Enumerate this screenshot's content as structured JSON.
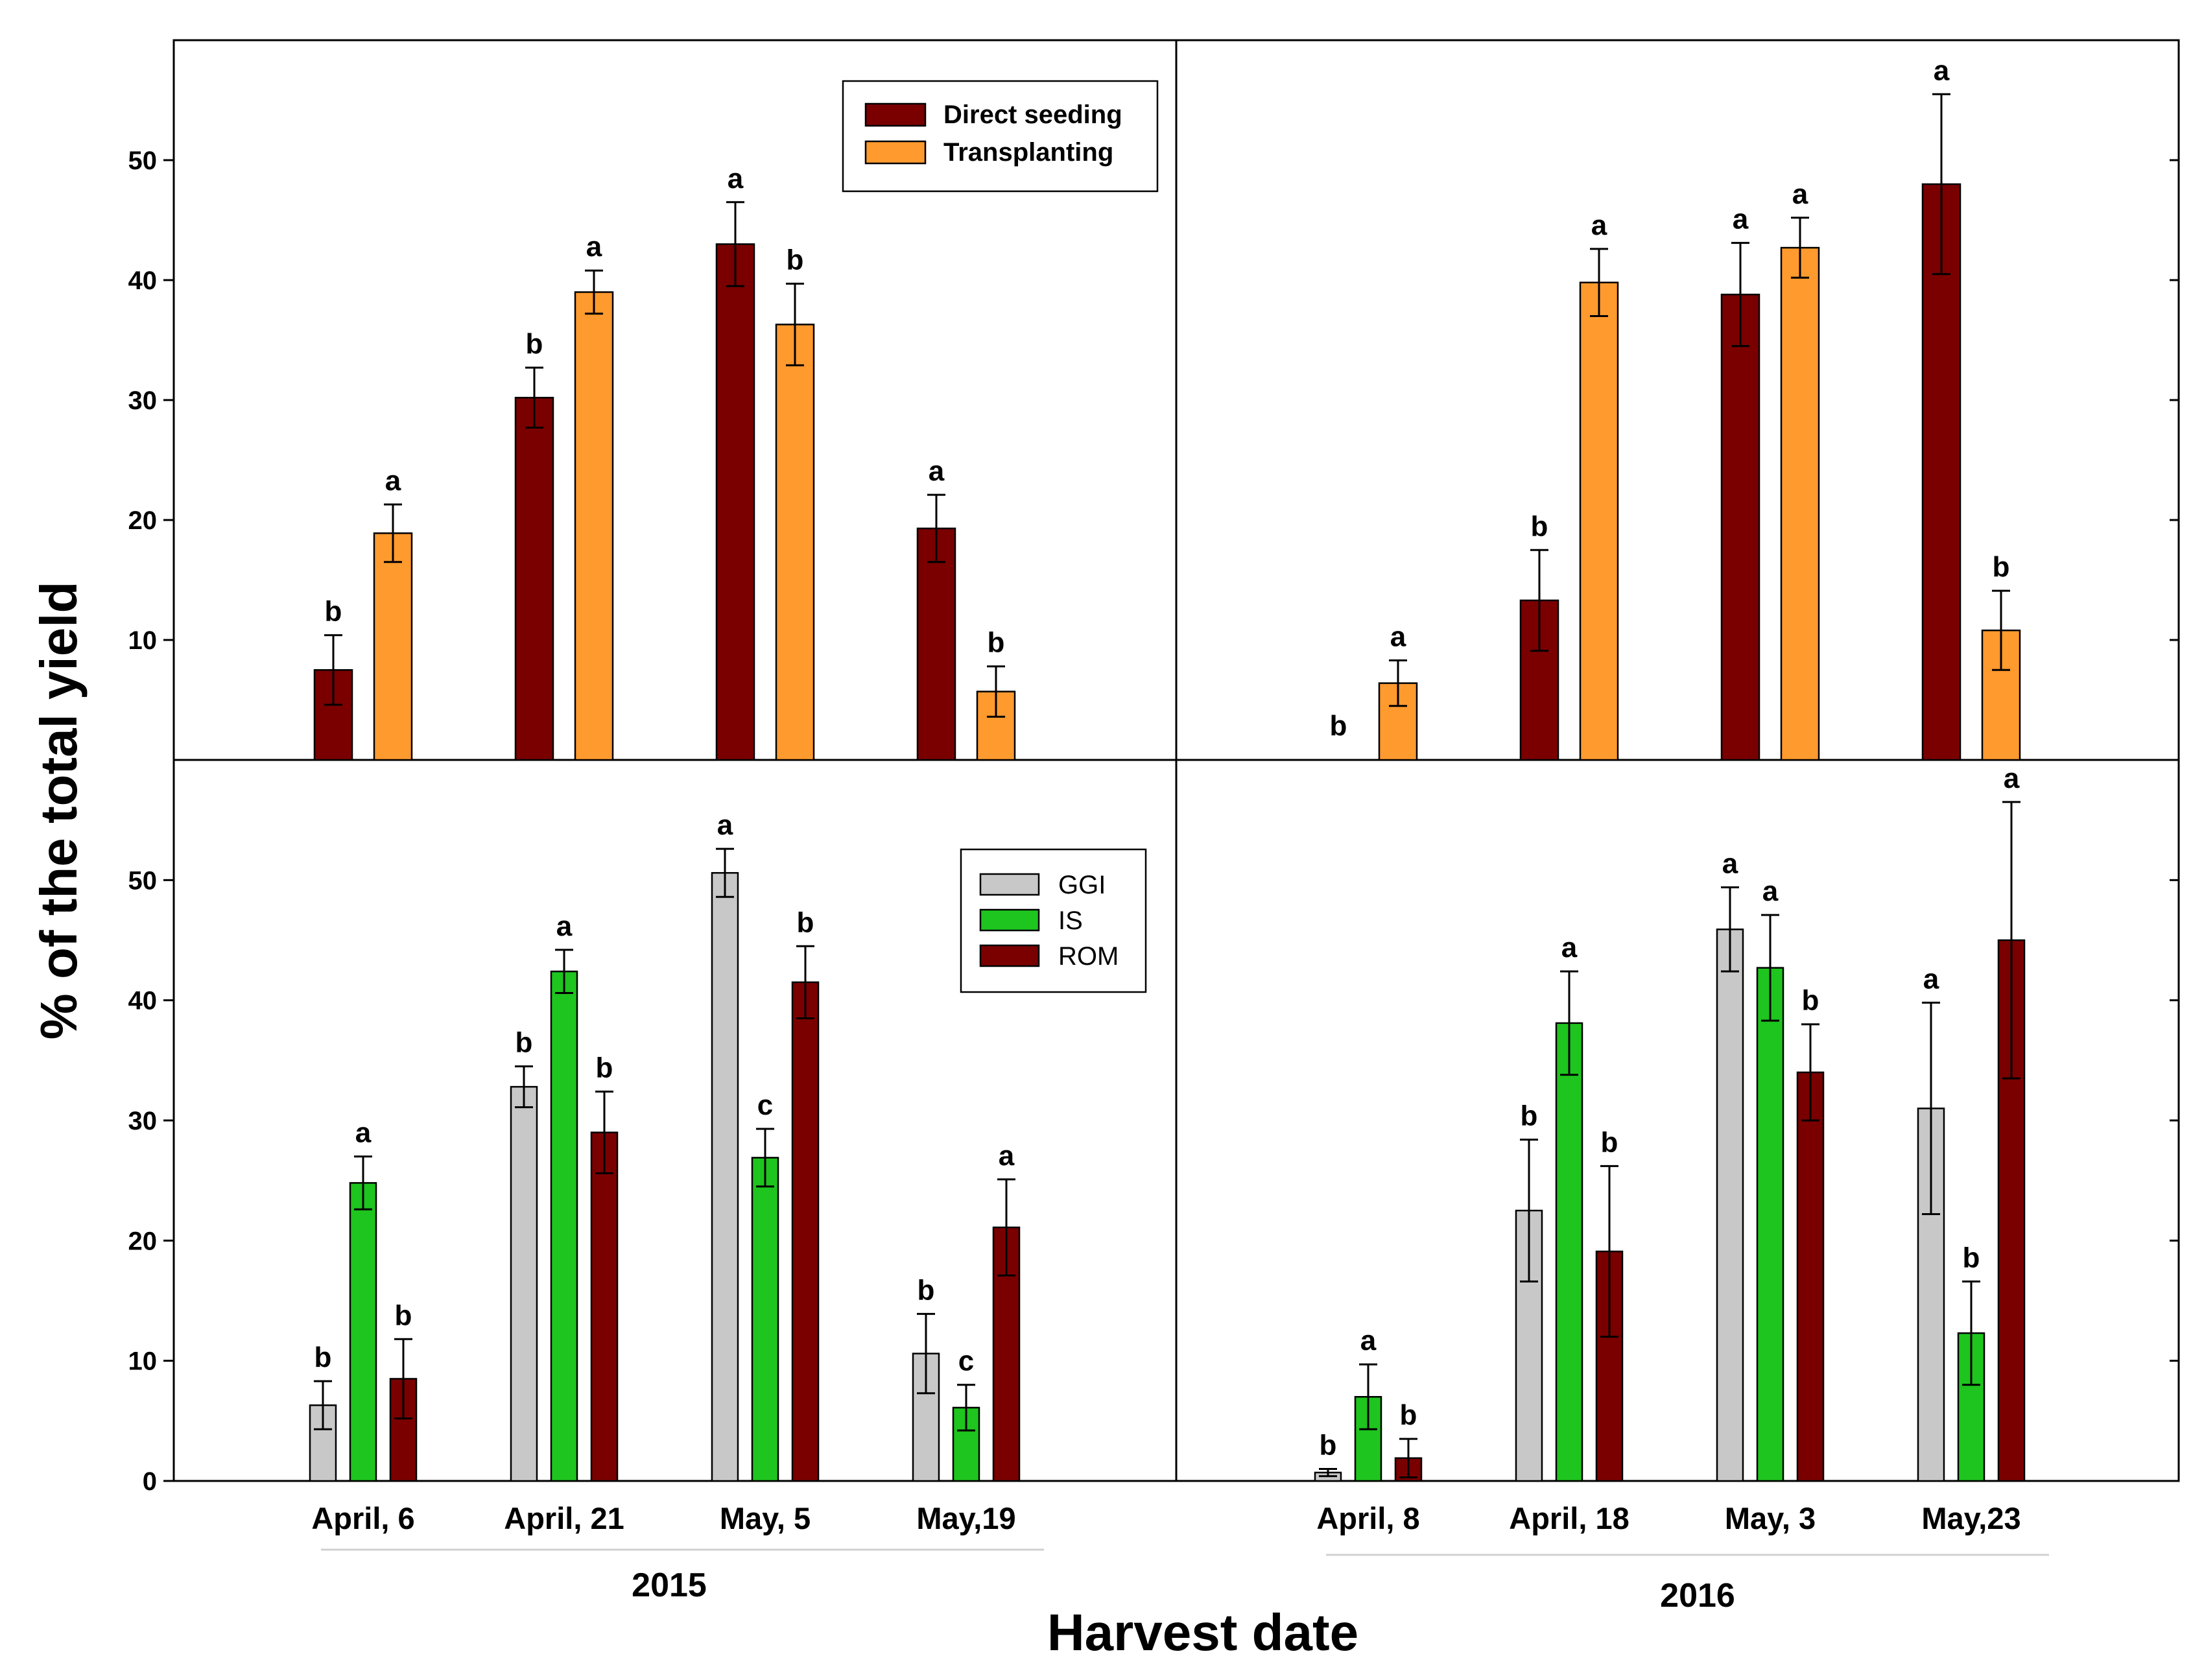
{
  "chart_data": {
    "type": "bar",
    "ylabel": "% of the total yield",
    "xlabel": "Harvest date",
    "ylim": [
      0,
      60
    ],
    "yticks": [
      10,
      20,
      30,
      40,
      50
    ],
    "bottom_yticks": [
      0,
      10,
      20,
      30,
      40,
      50
    ],
    "colors": {
      "direct_seeding": "#7a0000",
      "transplanting": "#ff9a2e",
      "ggi": "#c8c8c8",
      "is": "#1ec51e",
      "rom": "#7a0000"
    },
    "years": [
      "2015",
      "2016"
    ],
    "panels": [
      {
        "id": "top-2015",
        "categories": [
          "April, 6",
          "April, 21",
          "May, 5",
          "May,19"
        ],
        "legend": [
          "Direct seeding",
          "Transplanting"
        ],
        "series": [
          {
            "name": "Direct seeding",
            "values": [
              7.5,
              30.2,
              43.0,
              19.3
            ],
            "errors": [
              2.9,
              2.5,
              3.5,
              2.8
            ],
            "sig": [
              "b",
              "b",
              "a",
              "a"
            ]
          },
          {
            "name": "Transplanting",
            "values": [
              18.9,
              39.0,
              36.3,
              5.7
            ],
            "errors": [
              2.4,
              1.8,
              3.4,
              2.1
            ],
            "sig": [
              "a",
              "a",
              "b",
              "b"
            ]
          }
        ]
      },
      {
        "id": "top-2016",
        "categories": [
          "April, 8",
          "April, 18",
          "May, 3",
          "May,23"
        ],
        "series": [
          {
            "name": "Direct seeding",
            "values": [
              0,
              13.3,
              38.8,
              48.0
            ],
            "errors": [
              0,
              4.2,
              4.3,
              7.5
            ],
            "sig": [
              "b",
              "b",
              "a",
              "a"
            ]
          },
          {
            "name": "Transplanting",
            "values": [
              6.4,
              39.8,
              42.7,
              10.8
            ],
            "errors": [
              1.9,
              2.8,
              2.5,
              3.3
            ],
            "sig": [
              "a",
              "a",
              "a",
              "b"
            ]
          }
        ]
      },
      {
        "id": "bottom-2015",
        "categories": [
          "April, 6",
          "April, 21",
          "May, 5",
          "May,19"
        ],
        "legend": [
          "GGI",
          "IS",
          "ROM"
        ],
        "series": [
          {
            "name": "GGI",
            "values": [
              6.3,
              32.8,
              50.6,
              10.6
            ],
            "errors": [
              2.0,
              1.7,
              2.0,
              3.3
            ],
            "sig": [
              "b",
              "b",
              "a",
              "b"
            ]
          },
          {
            "name": "IS",
            "values": [
              24.8,
              42.4,
              26.9,
              6.1
            ],
            "errors": [
              2.2,
              1.8,
              2.4,
              1.9
            ],
            "sig": [
              "a",
              "a",
              "c",
              "c"
            ]
          },
          {
            "name": "ROM",
            "values": [
              8.5,
              29.0,
              41.5,
              21.1
            ],
            "errors": [
              3.3,
              3.4,
              3.0,
              4.0
            ],
            "sig": [
              "b",
              "b",
              "b",
              "a"
            ]
          }
        ]
      },
      {
        "id": "bottom-2016",
        "categories": [
          "April, 8",
          "April, 18",
          "May, 3",
          "May,23"
        ],
        "series": [
          {
            "name": "GGI",
            "values": [
              0.7,
              22.5,
              45.9,
              31.0
            ],
            "errors": [
              0.3,
              5.9,
              3.5,
              8.8
            ],
            "sig": [
              "b",
              "b",
              "a",
              "a"
            ]
          },
          {
            "name": "IS",
            "values": [
              7.0,
              38.1,
              42.7,
              12.3
            ],
            "errors": [
              2.7,
              4.3,
              4.4,
              4.3
            ],
            "sig": [
              "a",
              "a",
              "a",
              "b"
            ]
          },
          {
            "name": "ROM",
            "values": [
              1.9,
              19.1,
              34.0,
              45.0
            ],
            "errors": [
              1.6,
              7.1,
              4.0,
              11.5
            ],
            "sig": [
              "b",
              "b",
              "b",
              "a"
            ]
          }
        ]
      }
    ]
  }
}
